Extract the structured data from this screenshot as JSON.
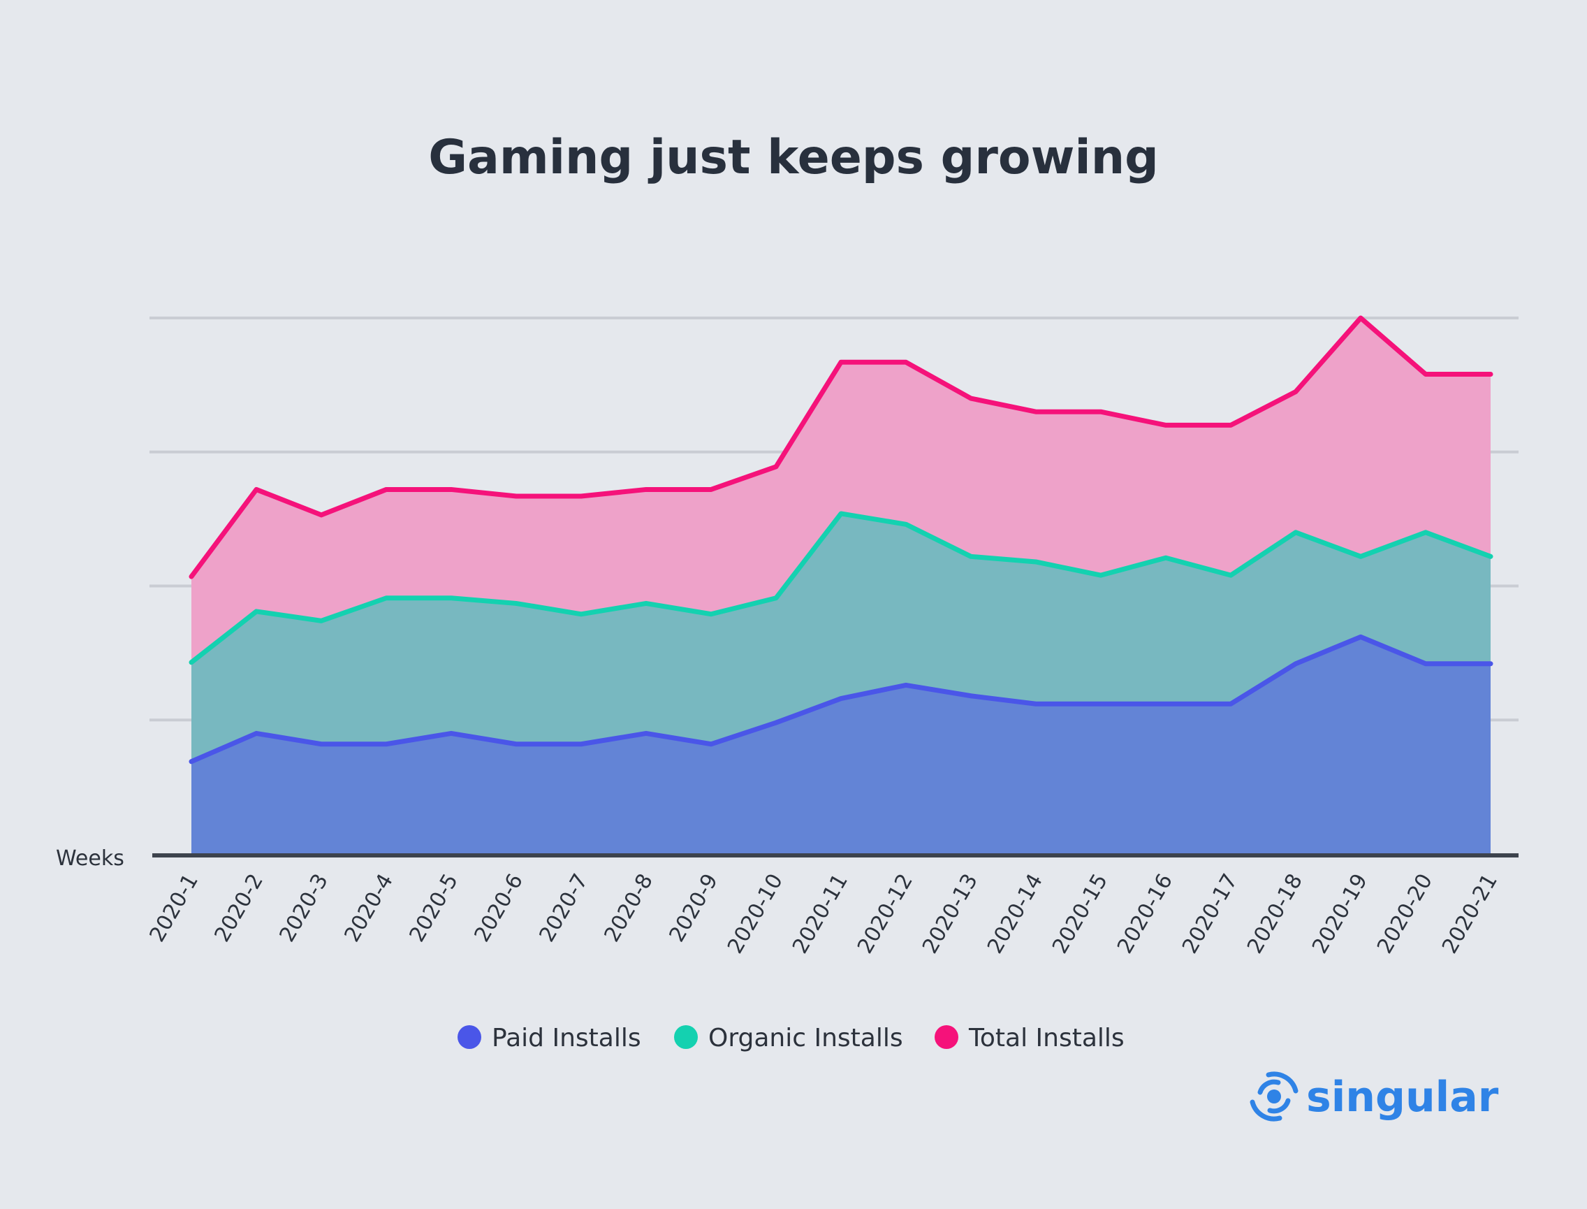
{
  "chart_data": {
    "type": "area",
    "title": "Gaming just keeps growing",
    "xlabel": "Weeks",
    "ylabel": "",
    "ylim": [
      0,
      4
    ],
    "grid": true,
    "legend_position": "bottom",
    "categories": [
      "2020-1",
      "2020-2",
      "2020-3",
      "2020-4",
      "2020-5",
      "2020-6",
      "2020-7",
      "2020-8",
      "2020-9",
      "2020-10",
      "2020-11",
      "2020-12",
      "2020-13",
      "2020-14",
      "2020-15",
      "2020-16",
      "2020-17",
      "2020-18",
      "2020-19",
      "2020-20",
      "2020-21"
    ],
    "series": [
      {
        "name": "Paid Installs",
        "line_color": "#4a56e8",
        "fill_color": "#6384d6",
        "values": [
          0.69,
          0.9,
          0.82,
          0.82,
          0.9,
          0.82,
          0.82,
          0.9,
          0.82,
          0.98,
          1.16,
          1.26,
          1.18,
          1.12,
          1.12,
          1.12,
          1.12,
          1.42,
          1.62,
          1.42,
          1.42
        ]
      },
      {
        "name": "Organic Installs",
        "line_color": "#14d1b0",
        "fill_color": "#78b8c0",
        "values": [
          1.43,
          1.81,
          1.74,
          1.91,
          1.91,
          1.87,
          1.79,
          1.87,
          1.79,
          1.91,
          2.54,
          2.46,
          2.22,
          2.18,
          2.08,
          2.21,
          2.08,
          2.4,
          2.22,
          2.4,
          2.22
        ]
      },
      {
        "name": "Total Installs",
        "line_color": "#f5127a",
        "fill_color": "#eea2c9",
        "values": [
          2.07,
          2.72,
          2.53,
          2.72,
          2.72,
          2.67,
          2.67,
          2.72,
          2.72,
          2.89,
          3.67,
          3.67,
          3.4,
          3.3,
          3.3,
          3.2,
          3.2,
          3.45,
          4.0,
          3.58,
          3.58
        ]
      }
    ]
  },
  "brand": {
    "name": "singular",
    "color": "#2f83e6",
    "icon": "singular-logo-icon"
  }
}
